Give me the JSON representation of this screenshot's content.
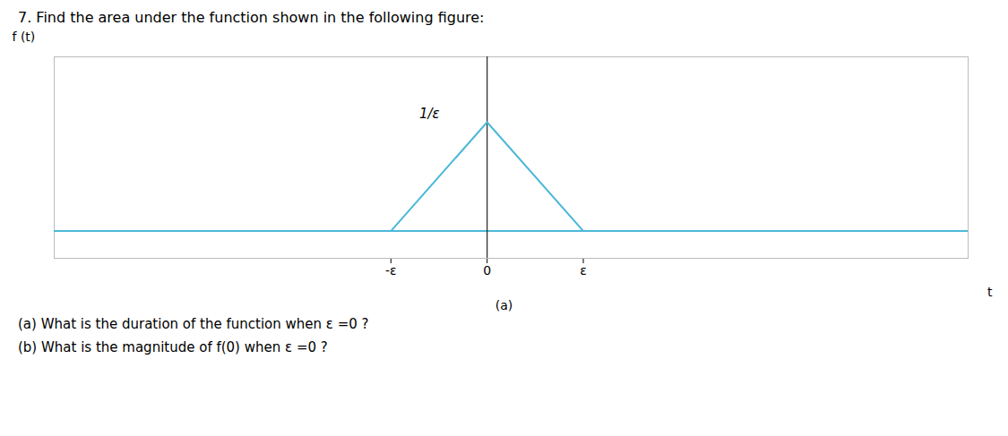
{
  "chart_data": {
    "type": "line",
    "title": "7.  Find the area under the function shown in the following figure:",
    "x": [
      -1,
      0,
      1
    ],
    "values": [
      0,
      1,
      0
    ],
    "color": "#4db8d9",
    "xlim": [
      -4.5,
      5.0
    ],
    "ylim": [
      -0.25,
      1.6
    ],
    "xticks": [
      {
        "value": -1,
        "label": "-ε"
      },
      {
        "value": 0,
        "label": "0"
      },
      {
        "value": 1,
        "label": "ε"
      }
    ],
    "yticks": [],
    "tick_labels": "x",
    "grid": false,
    "x_label": "t",
    "y_label": "f (t)",
    "caption": "(a)",
    "annotations": [
      {
        "text": "1/ε",
        "x": -0.6,
        "y": 1.04
      },
      {
        "text": "(a) What is the duration of the function when ε =0 ?"
      },
      {
        "text": "(b) What is the magnitude of f(0) when ε =0 ?"
      }
    ]
  }
}
